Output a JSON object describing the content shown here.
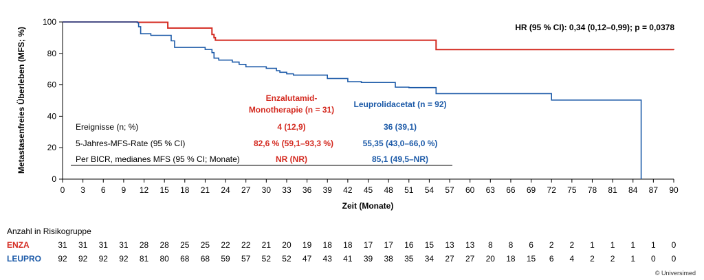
{
  "chart_data": {
    "type": "line",
    "title": "",
    "xlabel": "Zeit (Monate)",
    "ylabel": "Metastasenfreies Überleben (MFS; %)",
    "xlim": [
      0,
      90
    ],
    "ylim": [
      0,
      100
    ],
    "x_ticks": [
      0,
      3,
      6,
      9,
      12,
      15,
      18,
      21,
      24,
      27,
      30,
      33,
      36,
      39,
      42,
      45,
      48,
      51,
      54,
      57,
      60,
      63,
      66,
      69,
      72,
      75,
      78,
      81,
      84,
      87,
      90
    ],
    "y_ticks": [
      0,
      20,
      40,
      60,
      80,
      100
    ],
    "grid": false,
    "annotation": "HR (95 % CI): 0,34 (0,12–0,99); p = 0,0378",
    "series": [
      {
        "name": "Enzalutamid-Monotherapie (n = 31)",
        "color": "#d42a20",
        "x": [
          0,
          11,
          15.5,
          22,
          22.3,
          22.5,
          55,
          90
        ],
        "y": [
          100,
          99.8,
          96.1,
          92,
          90,
          88.4,
          82.4,
          82.2
        ]
      },
      {
        "name": "Leuprolidacetat (n = 92)",
        "color": "#1c5aa8",
        "x": [
          0,
          11,
          11.2,
          11.5,
          13,
          16,
          16.5,
          21,
          22,
          22.3,
          23,
          25,
          26,
          27,
          30,
          31.5,
          32,
          33,
          34,
          39,
          42,
          44,
          49,
          51,
          55,
          72,
          85,
          85.2
        ],
        "y": [
          100,
          99.5,
          97,
          92.5,
          91.5,
          88,
          83.8,
          82.5,
          80.5,
          77,
          75.7,
          74.5,
          73,
          71.5,
          70.5,
          69,
          68,
          67,
          66.2,
          64,
          62,
          61.5,
          58.5,
          58.2,
          54.4,
          50.3,
          50.3,
          0
        ]
      }
    ],
    "stats_table": {
      "col_enza": "Enzalutamid-Monotherapie (n = 31)",
      "col_enza_line1": "Enzalutamid-",
      "col_enza_line2": "Monotherapie (n = 31)",
      "col_leupro": "Leuprolidacetat (n = 92)",
      "rows": [
        {
          "label": "Ereignisse (n; %)",
          "enza": "4 (12,9)",
          "leupro": "36 (39,1)"
        },
        {
          "label": "5-Jahres-MFS-Rate (95 % CI)",
          "enza": "82,6 % (59,1–93,3 %)",
          "leupro": "55,35 (43,0–66,0 %)"
        },
        {
          "label": "Per BICR, medianes MFS (95 % CI; Monate)",
          "enza": "NR (NR)",
          "leupro": "85,1 (49,5–NR)"
        }
      ]
    },
    "risk_table": {
      "title": "Anzahl in Risikogruppe",
      "rows": [
        {
          "name": "ENZA",
          "color": "#d42a20",
          "values": [
            31,
            31,
            31,
            31,
            28,
            28,
            25,
            25,
            22,
            22,
            21,
            20,
            19,
            18,
            18,
            17,
            17,
            16,
            15,
            13,
            13,
            8,
            8,
            6,
            2,
            2,
            1,
            1,
            1,
            1,
            0
          ]
        },
        {
          "name": "LEUPRO",
          "color": "#1c5aa8",
          "values": [
            92,
            92,
            92,
            92,
            81,
            80,
            68,
            68,
            59,
            57,
            52,
            52,
            47,
            43,
            41,
            39,
            38,
            35,
            34,
            27,
            27,
            20,
            18,
            15,
            6,
            4,
            2,
            2,
            1,
            0,
            0
          ]
        }
      ]
    }
  },
  "copyright": "© Universimed"
}
